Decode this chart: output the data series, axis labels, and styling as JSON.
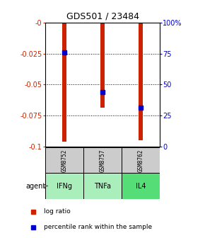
{
  "title": "GDS501 / 23484",
  "samples": [
    "GSM8752",
    "GSM8757",
    "GSM8762"
  ],
  "agents": [
    "IFNg",
    "TNFa",
    "IL4"
  ],
  "log_ratios": [
    -0.096,
    -0.069,
    -0.095
  ],
  "percentile_ranks": [
    0.76,
    0.44,
    0.31
  ],
  "ylim_left": [
    -0.1,
    0.0
  ],
  "ylim_right": [
    0.0,
    1.0
  ],
  "yticks_left": [
    0.0,
    -0.025,
    -0.05,
    -0.075,
    -0.1
  ],
  "ytick_labels_left": [
    "-0",
    "-0.025",
    "-0.05",
    "-0.075",
    "-0.1"
  ],
  "yticks_right": [
    0.0,
    0.25,
    0.5,
    0.75,
    1.0
  ],
  "ytick_labels_right": [
    "0",
    "25",
    "50",
    "75",
    "100%"
  ],
  "bar_color": "#cc2200",
  "dot_color": "#0000cc",
  "gray_box_color": "#cccccc",
  "green_box_light": "#aaeebb",
  "green_box_dark": "#55dd77",
  "agent_label": "agent",
  "legend_log": "log ratio",
  "legend_pct": "percentile rank within the sample",
  "bar_width": 0.12,
  "x_positions": [
    0,
    1,
    2
  ]
}
